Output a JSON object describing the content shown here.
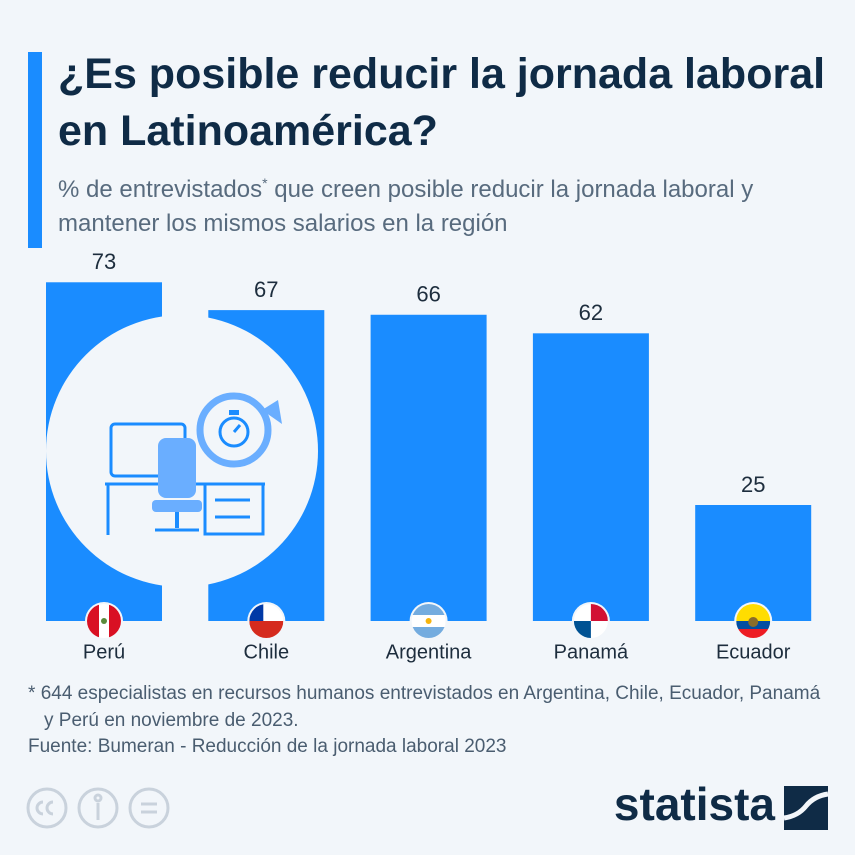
{
  "chart_data": {
    "type": "bar",
    "title": "¿Es posible reducir la jornada laboral en Latinoamérica?",
    "subtitle": {
      "before": "% de entrevistados",
      "marker": "*",
      "after": " que creen posible reducir la jornada laboral y mantener los mismos salarios en la región"
    },
    "categories": [
      "Perú",
      "Chile",
      "Argentina",
      "Panamá",
      "Ecuador"
    ],
    "values": [
      73,
      67,
      66,
      62,
      25
    ],
    "color": "#1a8cff",
    "ylim": [
      0,
      100
    ],
    "footnote": {
      "marker": "*",
      "text": "644 especialistas en recursos humanos entrevistados en Argentina, Chile, Ecuador, Panamá y Perú en noviembre de 2023."
    },
    "source": "Fuente: Bumeran - Reducción de la jornada laboral 2023",
    "brand": "statista"
  }
}
